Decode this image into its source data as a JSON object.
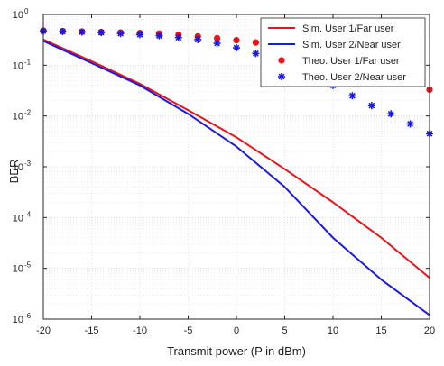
{
  "chart_data": {
    "type": "line",
    "title": "",
    "xlabel": "Transmit power (P in dBm)",
    "ylabel": "BER",
    "xlim": [
      -20,
      20
    ],
    "ylim": [
      1e-06,
      1
    ],
    "yscale": "log",
    "grid": true,
    "legend_position": "top-right",
    "x_ticks": [
      -20,
      -15,
      -10,
      -5,
      0,
      5,
      10,
      15,
      20
    ],
    "x_tick_labels": [
      "-20",
      "-15",
      "-10",
      "-5",
      "0",
      "5",
      "10",
      "15",
      "20"
    ],
    "y_ticks": [
      1e-06,
      1e-05,
      0.0001,
      0.001,
      0.01,
      0.1,
      1
    ],
    "y_tick_labels": [
      {
        "base": "10",
        "exp": "-6"
      },
      {
        "base": "10",
        "exp": "-5"
      },
      {
        "base": "10",
        "exp": "-4"
      },
      {
        "base": "10",
        "exp": "-3"
      },
      {
        "base": "10",
        "exp": "-2"
      },
      {
        "base": "10",
        "exp": "-1"
      },
      {
        "base": "10",
        "exp": "0"
      }
    ],
    "series": [
      {
        "name": "Sim. User 1/Far user",
        "style": "line",
        "color": "#e8141a",
        "x": [
          -20,
          -15,
          -10,
          -5,
          0,
          5,
          10,
          15,
          20
        ],
        "y": [
          0.32,
          0.12,
          0.043,
          0.013,
          0.0038,
          0.0009,
          0.0002,
          4e-05,
          6.5e-06
        ]
      },
      {
        "name": "Sim. User 2/Near user",
        "style": "line",
        "color": "#1a1ae0",
        "x": [
          -20,
          -15,
          -10,
          -5,
          0,
          5,
          10,
          15,
          20
        ],
        "y": [
          0.3,
          0.11,
          0.04,
          0.011,
          0.0025,
          0.0004,
          4e-05,
          6e-06,
          1.2e-06
        ]
      },
      {
        "name": "Theo. User 1/Far user",
        "style": "marker-dot",
        "color": "#e8141a",
        "x": [
          -20,
          -18,
          -16,
          -14,
          -12,
          -10,
          -8,
          -6,
          -4,
          -2,
          0,
          2,
          4,
          6,
          8,
          10,
          12,
          14,
          16,
          18,
          20
        ],
        "y": [
          0.48,
          0.47,
          0.46,
          0.45,
          0.44,
          0.43,
          0.42,
          0.4,
          0.37,
          0.34,
          0.31,
          0.28,
          0.25,
          0.22,
          0.19,
          0.16,
          0.13,
          0.1,
          0.075,
          0.05,
          0.033
        ]
      },
      {
        "name": "Theo. User 2/Near user",
        "style": "marker-star",
        "color": "#1a1ae0",
        "x": [
          -20,
          -18,
          -16,
          -14,
          -12,
          -10,
          -8,
          -6,
          -4,
          -2,
          0,
          2,
          4,
          6,
          8,
          10,
          12,
          14,
          16,
          18,
          20
        ],
        "y": [
          0.47,
          0.46,
          0.45,
          0.44,
          0.42,
          0.4,
          0.38,
          0.35,
          0.32,
          0.27,
          0.22,
          0.17,
          0.12,
          0.08,
          0.055,
          0.04,
          0.025,
          0.016,
          0.011,
          0.007,
          0.0045
        ]
      }
    ]
  }
}
